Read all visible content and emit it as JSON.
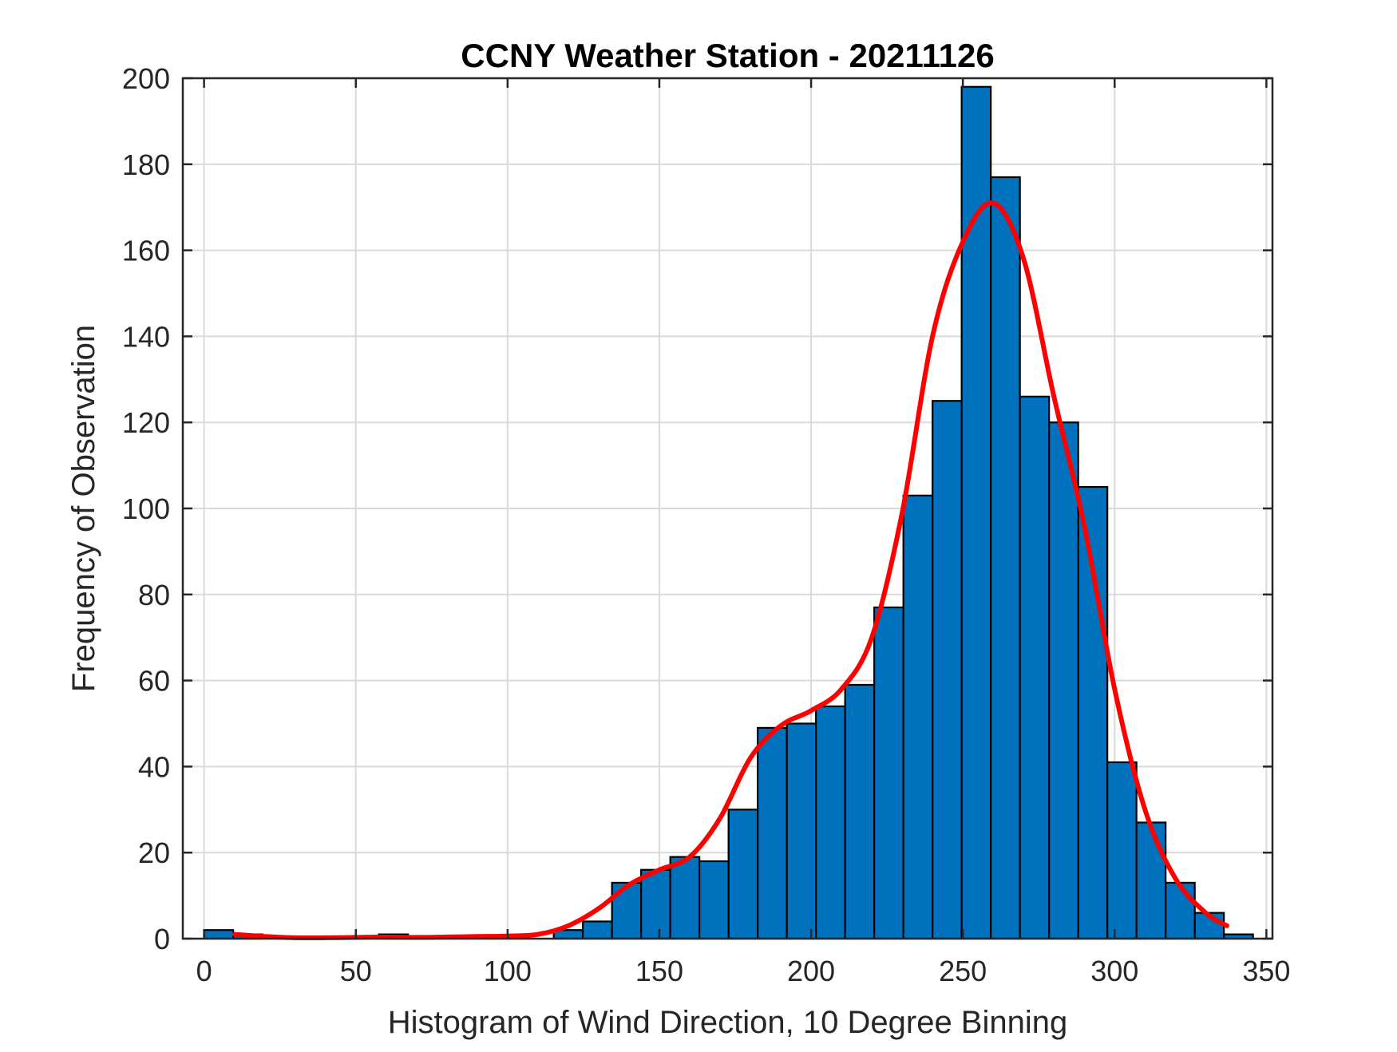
{
  "chart_data": {
    "type": "bar",
    "title": "CCNY Weather Station - 20211126",
    "xlabel": "Histogram of Wind Direction, 10 Degree Binning",
    "ylabel": "Frequency of Observation",
    "xlim": [
      -7,
      352
    ],
    "ylim": [
      0,
      200
    ],
    "xticks": [
      0,
      50,
      100,
      150,
      200,
      250,
      300,
      350
    ],
    "yticks": [
      0,
      20,
      40,
      60,
      80,
      100,
      120,
      140,
      160,
      180,
      200
    ],
    "grid": true,
    "bin_width": 9.6,
    "bins": [
      {
        "x0": 0.0,
        "count": 2
      },
      {
        "x0": 9.6,
        "count": 1
      },
      {
        "x0": 19.2,
        "count": 0
      },
      {
        "x0": 28.8,
        "count": 0
      },
      {
        "x0": 38.4,
        "count": 0
      },
      {
        "x0": 48.0,
        "count": 0
      },
      {
        "x0": 57.6,
        "count": 1
      },
      {
        "x0": 67.2,
        "count": 0
      },
      {
        "x0": 76.8,
        "count": 0
      },
      {
        "x0": 86.4,
        "count": 0
      },
      {
        "x0": 96.0,
        "count": 0
      },
      {
        "x0": 105.6,
        "count": 0
      },
      {
        "x0": 115.2,
        "count": 2
      },
      {
        "x0": 124.8,
        "count": 4
      },
      {
        "x0": 134.4,
        "count": 13
      },
      {
        "x0": 144.0,
        "count": 16
      },
      {
        "x0": 153.6,
        "count": 19
      },
      {
        "x0": 163.2,
        "count": 18
      },
      {
        "x0": 172.8,
        "count": 30
      },
      {
        "x0": 182.4,
        "count": 49
      },
      {
        "x0": 192.0,
        "count": 50
      },
      {
        "x0": 201.6,
        "count": 54
      },
      {
        "x0": 211.2,
        "count": 59
      },
      {
        "x0": 220.8,
        "count": 77
      },
      {
        "x0": 230.4,
        "count": 103
      },
      {
        "x0": 240.0,
        "count": 125
      },
      {
        "x0": 249.6,
        "count": 198
      },
      {
        "x0": 259.2,
        "count": 177
      },
      {
        "x0": 268.8,
        "count": 126
      },
      {
        "x0": 278.4,
        "count": 120
      },
      {
        "x0": 288.0,
        "count": 105
      },
      {
        "x0": 297.6,
        "count": 41
      },
      {
        "x0": 307.2,
        "count": 27
      },
      {
        "x0": 316.8,
        "count": 13
      },
      {
        "x0": 326.4,
        "count": 6
      },
      {
        "x0": 336.0,
        "count": 1
      }
    ],
    "fit_curve": {
      "x": [
        10,
        20,
        30,
        40,
        50,
        60,
        70,
        80,
        90,
        100,
        110,
        120,
        130,
        140,
        150,
        160,
        170,
        180,
        190,
        200,
        210,
        220,
        230,
        240,
        250,
        260,
        270,
        280,
        290,
        300,
        310,
        320,
        330,
        337
      ],
      "y": [
        1,
        0.5,
        0.2,
        0.2,
        0.3,
        0.4,
        0.3,
        0.4,
        0.5,
        0.6,
        1,
        3,
        7,
        12.5,
        16,
        19,
        28,
        42,
        49.5,
        53,
        58,
        70,
        99,
        140,
        162,
        171,
        158,
        126,
        96,
        58,
        30,
        14,
        6,
        3
      ]
    },
    "colors": {
      "bar_fill": "#0072bd",
      "bar_edge": "#000000",
      "curve": "#ff0000",
      "grid": "#dadada",
      "axes": "#262626"
    }
  }
}
